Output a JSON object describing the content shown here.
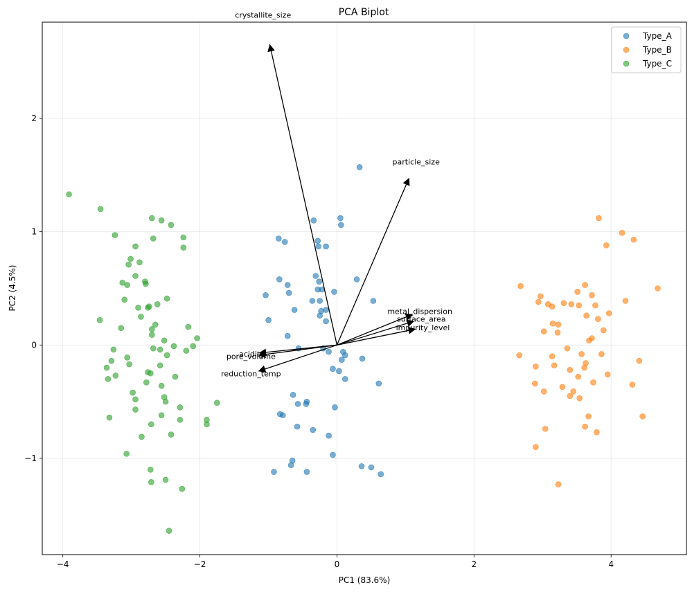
{
  "chart_data": {
    "type": "scatter",
    "title": "PCA Biplot",
    "xlabel": "PC1 (83.6%)",
    "ylabel": "PC2 (4.5%)",
    "xlim": [
      -4.3,
      5.1
    ],
    "ylim": [
      -1.85,
      2.85
    ],
    "xticks": [
      -4,
      -2,
      0,
      2,
      4
    ],
    "xtick_labels": [
      "−4",
      "−2",
      "0",
      "2",
      "4"
    ],
    "yticks": [
      -1,
      0,
      1,
      2
    ],
    "ytick_labels": [
      "−1",
      "0",
      "1",
      "2"
    ],
    "grid": true,
    "legend_position": "top-right",
    "series": [
      {
        "name": "Type_A",
        "color": "#1f77b4",
        "points": [
          [
            0.33,
            1.57
          ],
          [
            -0.34,
            1.1
          ],
          [
            0.05,
            1.12
          ],
          [
            0.06,
            1.06
          ],
          [
            -0.85,
            0.94
          ],
          [
            -0.76,
            0.91
          ],
          [
            -0.28,
            0.92
          ],
          [
            -0.27,
            0.87
          ],
          [
            -0.16,
            0.87
          ],
          [
            -0.84,
            0.58
          ],
          [
            -0.72,
            0.53
          ],
          [
            -0.31,
            0.61
          ],
          [
            -0.26,
            0.56
          ],
          [
            0.29,
            0.58
          ],
          [
            -0.22,
            0.49
          ],
          [
            -0.28,
            0.49
          ],
          [
            -1.04,
            0.44
          ],
          [
            -0.7,
            0.46
          ],
          [
            -0.36,
            0.39
          ],
          [
            -0.25,
            0.39
          ],
          [
            -0.04,
            0.47
          ],
          [
            0.53,
            0.39
          ],
          [
            -0.62,
            0.31
          ],
          [
            -0.23,
            0.3
          ],
          [
            -0.25,
            0.26
          ],
          [
            -0.16,
            0.31
          ],
          [
            -0.16,
            0.21
          ],
          [
            -1.0,
            0.22
          ],
          [
            -0.72,
            0.08
          ],
          [
            -0.56,
            -0.03
          ],
          [
            -0.2,
            -0.03
          ],
          [
            -0.12,
            -0.06
          ],
          [
            0.09,
            -0.06
          ],
          [
            0.07,
            -0.13
          ],
          [
            0.12,
            -0.09
          ],
          [
            0.37,
            -0.12
          ],
          [
            -0.06,
            -0.21
          ],
          [
            0.03,
            -0.23
          ],
          [
            0.12,
            -0.3
          ],
          [
            0.61,
            -0.34
          ],
          [
            -0.64,
            -0.44
          ],
          [
            -0.57,
            -0.52
          ],
          [
            -0.44,
            -0.5
          ],
          [
            -0.45,
            -0.52
          ],
          [
            -0.03,
            -0.55
          ],
          [
            -0.83,
            -0.61
          ],
          [
            -0.79,
            -0.62
          ],
          [
            -0.58,
            -0.72
          ],
          [
            -0.35,
            -0.75
          ],
          [
            -0.12,
            -0.8
          ],
          [
            -0.06,
            -0.97
          ],
          [
            -0.65,
            -1.02
          ],
          [
            -0.67,
            -1.06
          ],
          [
            -0.92,
            -1.12
          ],
          [
            -0.44,
            -1.12
          ],
          [
            0.36,
            -1.07
          ],
          [
            0.5,
            -1.08
          ],
          [
            0.64,
            -1.14
          ]
        ]
      },
      {
        "name": "Type_B",
        "color": "#ff7f0e",
        "points": [
          [
            3.82,
            1.12
          ],
          [
            4.16,
            0.99
          ],
          [
            4.33,
            0.93
          ],
          [
            3.93,
            0.88
          ],
          [
            2.68,
            0.52
          ],
          [
            3.62,
            0.53
          ],
          [
            4.68,
            0.5
          ],
          [
            2.97,
            0.43
          ],
          [
            3.51,
            0.47
          ],
          [
            3.72,
            0.44
          ],
          [
            2.94,
            0.38
          ],
          [
            3.08,
            0.36
          ],
          [
            3.14,
            0.34
          ],
          [
            3.31,
            0.37
          ],
          [
            3.53,
            0.35
          ],
          [
            3.77,
            0.35
          ],
          [
            4.21,
            0.39
          ],
          [
            3.42,
            0.36
          ],
          [
            3.64,
            0.26
          ],
          [
            3.97,
            0.28
          ],
          [
            3.81,
            0.23
          ],
          [
            3.15,
            0.19
          ],
          [
            3.23,
            0.18
          ],
          [
            3.02,
            0.12
          ],
          [
            3.22,
            0.11
          ],
          [
            3.89,
            0.13
          ],
          [
            3.72,
            0.06
          ],
          [
            3.68,
            0.04
          ],
          [
            3.36,
            -0.03
          ],
          [
            2.66,
            -0.09
          ],
          [
            3.14,
            -0.1
          ],
          [
            3.57,
            -0.08
          ],
          [
            3.86,
            -0.08
          ],
          [
            4.41,
            -0.14
          ],
          [
            3.63,
            -0.16
          ],
          [
            3.61,
            -0.2
          ],
          [
            2.9,
            -0.19
          ],
          [
            3.4,
            -0.22
          ],
          [
            3.52,
            -0.28
          ],
          [
            3.95,
            -0.26
          ],
          [
            2.89,
            -0.34
          ],
          [
            3.74,
            -0.33
          ],
          [
            4.31,
            -0.35
          ],
          [
            3.02,
            -0.41
          ],
          [
            3.45,
            -0.41
          ],
          [
            3.4,
            -0.45
          ],
          [
            3.54,
            -0.47
          ],
          [
            3.29,
            -0.37
          ],
          [
            3.67,
            -0.63
          ],
          [
            4.46,
            -0.63
          ],
          [
            3.04,
            -0.74
          ],
          [
            3.62,
            -0.72
          ],
          [
            3.79,
            -0.77
          ],
          [
            2.9,
            -0.9
          ],
          [
            3.23,
            -1.23
          ],
          [
            3.17,
            -0.18
          ]
        ]
      },
      {
        "name": "Type_C",
        "color": "#2ca02c",
        "points": [
          [
            -3.91,
            1.33
          ],
          [
            -3.45,
            1.2
          ],
          [
            -2.7,
            1.12
          ],
          [
            -2.56,
            1.1
          ],
          [
            -2.42,
            1.06
          ],
          [
            -3.24,
            0.97
          ],
          [
            -2.24,
            0.95
          ],
          [
            -2.68,
            0.94
          ],
          [
            -2.24,
            0.86
          ],
          [
            -2.94,
            0.87
          ],
          [
            -3.01,
            0.76
          ],
          [
            -3.04,
            0.71
          ],
          [
            -2.88,
            0.73
          ],
          [
            -2.94,
            0.61
          ],
          [
            -3.13,
            0.55
          ],
          [
            -2.8,
            0.56
          ],
          [
            -3.06,
            0.53
          ],
          [
            -2.79,
            0.54
          ],
          [
            -2.48,
            0.41
          ],
          [
            -3.1,
            0.4
          ],
          [
            -2.62,
            0.36
          ],
          [
            -2.74,
            0.34
          ],
          [
            -2.76,
            0.33
          ],
          [
            -2.9,
            0.33
          ],
          [
            -2.86,
            0.25
          ],
          [
            -3.46,
            0.22
          ],
          [
            -2.65,
            0.18
          ],
          [
            -2.17,
            0.16
          ],
          [
            -2.7,
            0.14
          ],
          [
            -3.15,
            0.15
          ],
          [
            -2.7,
            0.09
          ],
          [
            -2.04,
            0.06
          ],
          [
            -2.52,
            0.04
          ],
          [
            -2.38,
            -0.01
          ],
          [
            -2.1,
            -0.01
          ],
          [
            -2.68,
            -0.03
          ],
          [
            -2.58,
            -0.04
          ],
          [
            -3.26,
            -0.04
          ],
          [
            -2.2,
            -0.05
          ],
          [
            -2.48,
            -0.09
          ],
          [
            -3.06,
            -0.11
          ],
          [
            -3.29,
            -0.14
          ],
          [
            -3.03,
            -0.17
          ],
          [
            -2.58,
            -0.18
          ],
          [
            -3.36,
            -0.2
          ],
          [
            -2.76,
            -0.24
          ],
          [
            -2.72,
            -0.25
          ],
          [
            -3.23,
            -0.27
          ],
          [
            -3.34,
            -0.3
          ],
          [
            -2.36,
            -0.28
          ],
          [
            -2.56,
            -0.36
          ],
          [
            -2.78,
            -0.33
          ],
          [
            -2.98,
            -0.42
          ],
          [
            -2.52,
            -0.46
          ],
          [
            -2.94,
            -0.48
          ],
          [
            -2.5,
            -0.5
          ],
          [
            -1.75,
            -0.51
          ],
          [
            -2.94,
            -0.57
          ],
          [
            -2.29,
            -0.55
          ],
          [
            -3.32,
            -0.64
          ],
          [
            -2.56,
            -0.62
          ],
          [
            -1.9,
            -0.66
          ],
          [
            -2.29,
            -0.66
          ],
          [
            -2.71,
            -0.7
          ],
          [
            -1.9,
            -0.7
          ],
          [
            -2.42,
            -0.79
          ],
          [
            -2.85,
            -0.81
          ],
          [
            -3.07,
            -0.96
          ],
          [
            -2.72,
            -1.1
          ],
          [
            -2.71,
            -1.21
          ],
          [
            -2.5,
            -1.19
          ],
          [
            -2.26,
            -1.27
          ],
          [
            -2.45,
            -1.64
          ]
        ]
      }
    ],
    "loadings": [
      {
        "name": "crystallite_size",
        "x": -0.98,
        "y": 2.65
      },
      {
        "name": "particle_size",
        "x": 1.05,
        "y": 1.47
      },
      {
        "name": "metal_dispersion",
        "x": 1.1,
        "y": 0.27
      },
      {
        "name": "surface_area",
        "x": 1.12,
        "y": 0.21
      },
      {
        "name": "impurity_level",
        "x": 1.14,
        "y": 0.14
      },
      {
        "name": "acidity",
        "x": -1.13,
        "y": -0.07
      },
      {
        "name": "pore_volume",
        "x": -1.14,
        "y": -0.09
      },
      {
        "name": "reduction_temp",
        "x": -1.14,
        "y": -0.23
      }
    ]
  }
}
